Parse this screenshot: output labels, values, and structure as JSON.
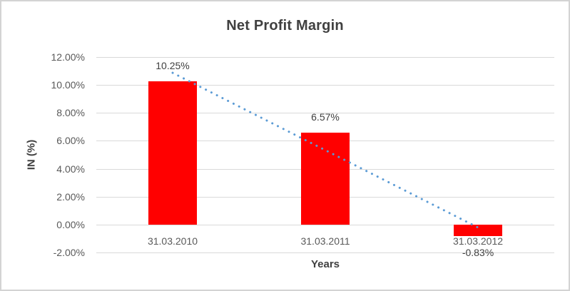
{
  "window": {
    "background": "#FFFFFF",
    "border_color": "#D3D3D3"
  },
  "chart_data": {
    "type": "bar",
    "title": "Net Profit Margin",
    "xlabel": "Years",
    "ylabel": "IN (%)",
    "categories": [
      "31.03.2010",
      "31.03.2011",
      "31.03.2012"
    ],
    "values": [
      10.25,
      6.57,
      -0.83
    ],
    "data_labels": [
      "10.25%",
      "6.57%",
      "-0.83%"
    ],
    "ylim": [
      -2,
      12
    ],
    "yticks": [
      {
        "value": 12,
        "label": "12.00%"
      },
      {
        "value": 10,
        "label": "10.00%"
      },
      {
        "value": 8,
        "label": "8.00%"
      },
      {
        "value": 6,
        "label": "6.00%"
      },
      {
        "value": 4,
        "label": "4.00%"
      },
      {
        "value": 2,
        "label": "2.00%"
      },
      {
        "value": 0,
        "label": "0.00%"
      },
      {
        "value": -2,
        "label": "-2.00%"
      }
    ],
    "grid": true,
    "legend": "none",
    "trendline": {
      "type": "linear",
      "style": "dotted-round"
    },
    "colors": {
      "bar": "#FF0000",
      "trendline": "#5B9BD5",
      "gridline": "#D9D9D9",
      "title_text": "#404040",
      "axis_title_text": "#404040",
      "tick_text": "#595959",
      "data_label_text": "#404040"
    }
  }
}
